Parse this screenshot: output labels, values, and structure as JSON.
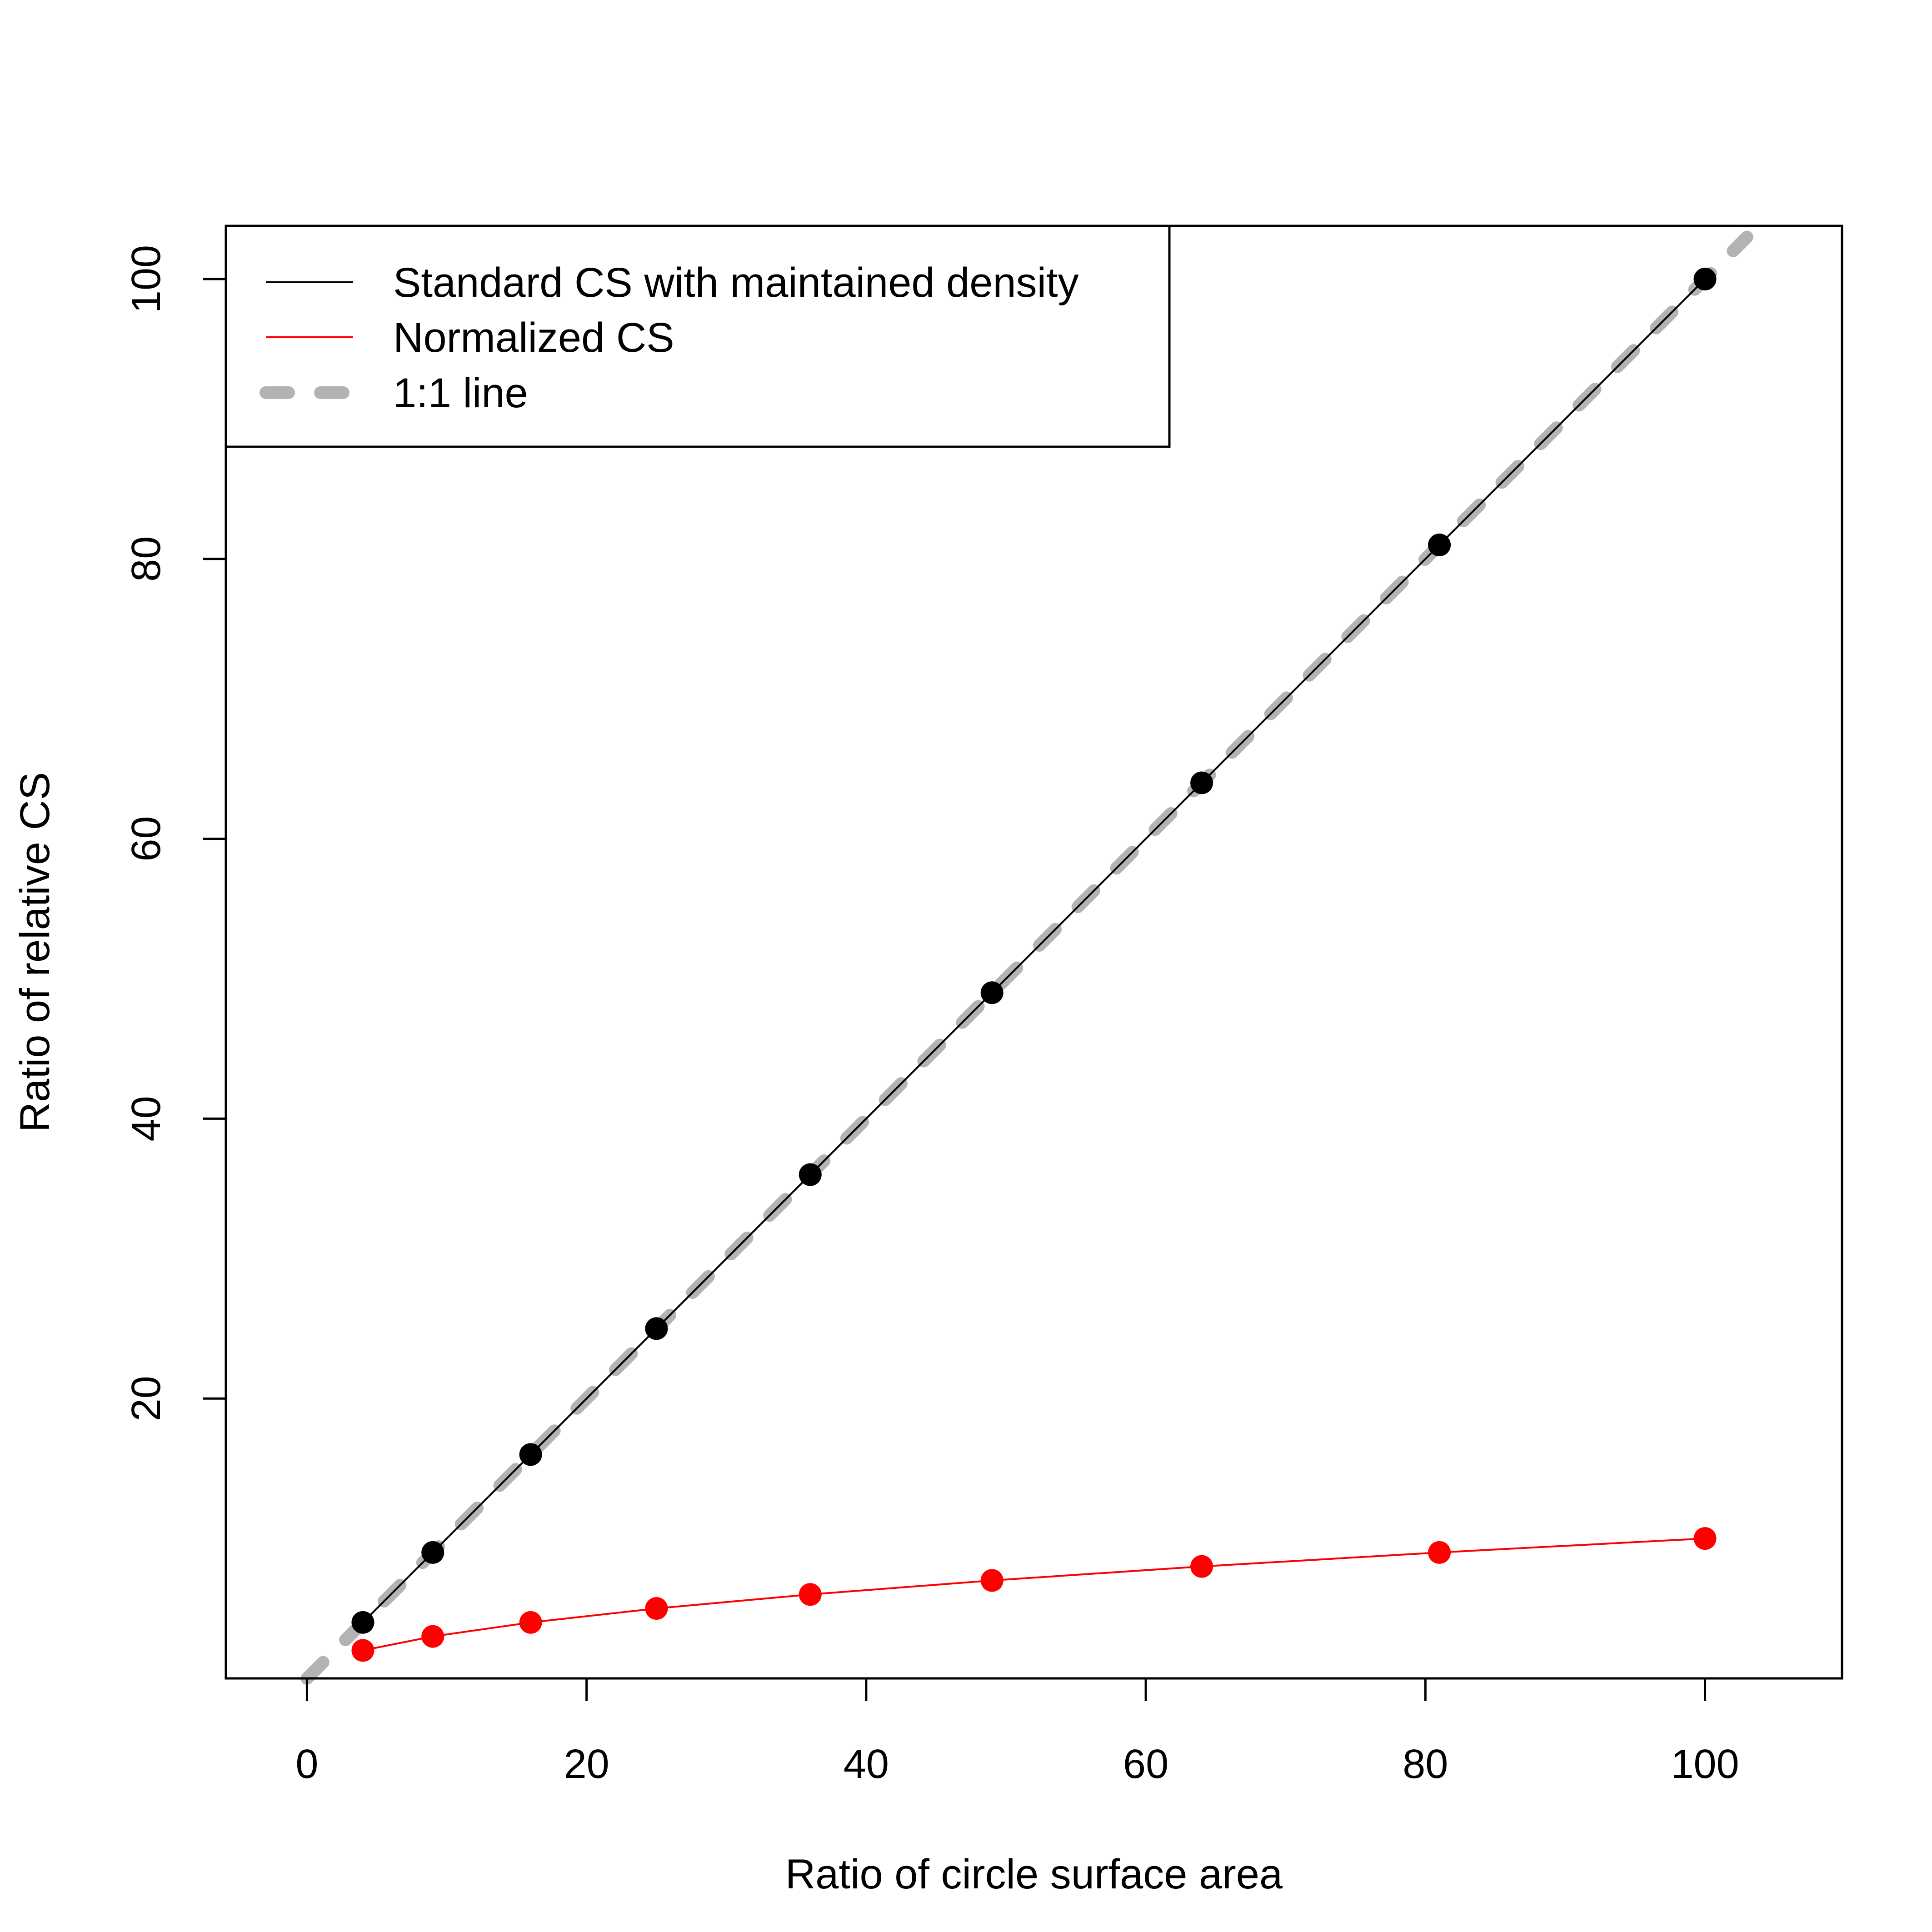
{
  "chart_data": {
    "type": "line",
    "title": "",
    "xlabel": "Ratio of circle surface area",
    "ylabel": "Ratio of relative CS",
    "xlim": [
      -5.8,
      109.8
    ],
    "ylim": [
      0,
      103.8
    ],
    "xticks": [
      0,
      20,
      40,
      60,
      80,
      100
    ],
    "yticks": [
      20,
      40,
      60,
      80,
      100
    ],
    "grid": false,
    "legend_position": "top-left",
    "x": [
      4,
      9,
      16,
      25,
      36,
      49,
      64,
      81,
      100
    ],
    "series": [
      {
        "name": "Standard CS with maintained density",
        "color": "#000000",
        "values": [
          4,
          9,
          16,
          25,
          36,
          49,
          64,
          81,
          100
        ]
      },
      {
        "name": "Normalized CS",
        "color": "#ff0000",
        "values": [
          2,
          3,
          4,
          5,
          6,
          7,
          8,
          9,
          10
        ]
      }
    ],
    "reference_line": {
      "name": "1:1 line",
      "color": "#b3b3b3",
      "style": "dashed",
      "from": [
        0,
        0
      ],
      "to": [
        103,
        103
      ]
    }
  }
}
